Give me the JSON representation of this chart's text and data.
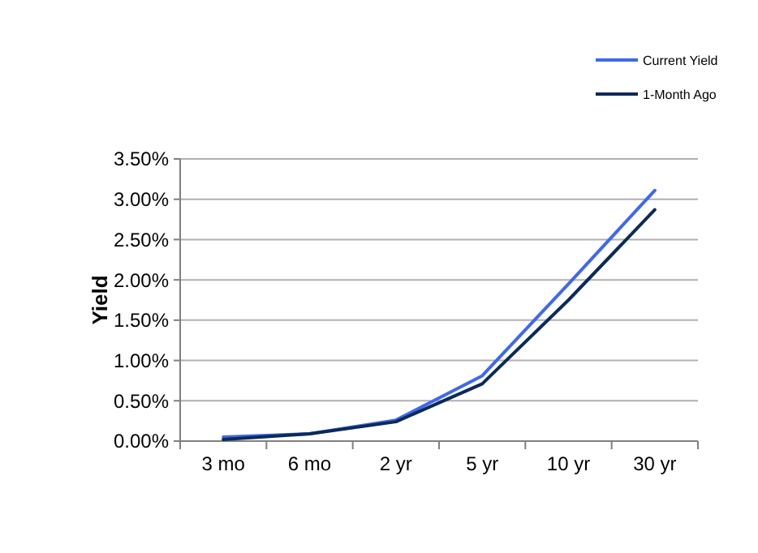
{
  "chart_data": {
    "type": "line",
    "ylabel": "Yield",
    "categories": [
      "3 mo",
      "6 mo",
      "2 yr",
      "5 yr",
      "10 yr",
      "30 yr"
    ],
    "series": [
      {
        "name": "Current Yield",
        "color": "#3f68f0",
        "values": [
          0.05,
          0.09,
          0.26,
          0.81,
          1.95,
          3.11
        ]
      },
      {
        "name": "1-Month Ago",
        "color": "#0c2a58",
        "values": [
          0.02,
          0.09,
          0.24,
          0.71,
          1.75,
          2.87
        ]
      }
    ],
    "ylim": [
      0,
      3.5
    ],
    "yticks": [
      {
        "value": 0,
        "label": "0.00%"
      },
      {
        "value": 0.5,
        "label": "0.50%"
      },
      {
        "value": 1,
        "label": "1.00%"
      },
      {
        "value": 1.5,
        "label": "1.50%"
      },
      {
        "value": 2,
        "label": "2.00%"
      },
      {
        "value": 2.5,
        "label": "2.50%"
      },
      {
        "value": 3,
        "label": "3.00%"
      },
      {
        "value": 3.5,
        "label": "3.50%"
      }
    ],
    "grid": "y",
    "legend": "top right",
    "marker": "none",
    "line_style": "solid"
  }
}
